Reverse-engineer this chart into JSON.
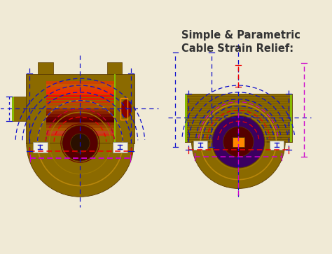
{
  "bg_color": "#f0ead6",
  "title_line1": "Cable Strain Relief:",
  "title_line2": "Simple & Parametric",
  "title_color": "#333333",
  "title_fontsize": 10.5,
  "dark_gold": "#8B6A00",
  "med_gold": "#B8860B",
  "rib_gold": "#9B7600",
  "dark_brown": "#5A3A00",
  "dark_red": "#6B0000",
  "med_red": "#AA2200",
  "blue": "#1010CC",
  "magenta": "#CC00CC",
  "red_dot": "#EE0000",
  "green": "#88BB00",
  "orange": "#FF8800",
  "white_box": "#F0F0E0"
}
